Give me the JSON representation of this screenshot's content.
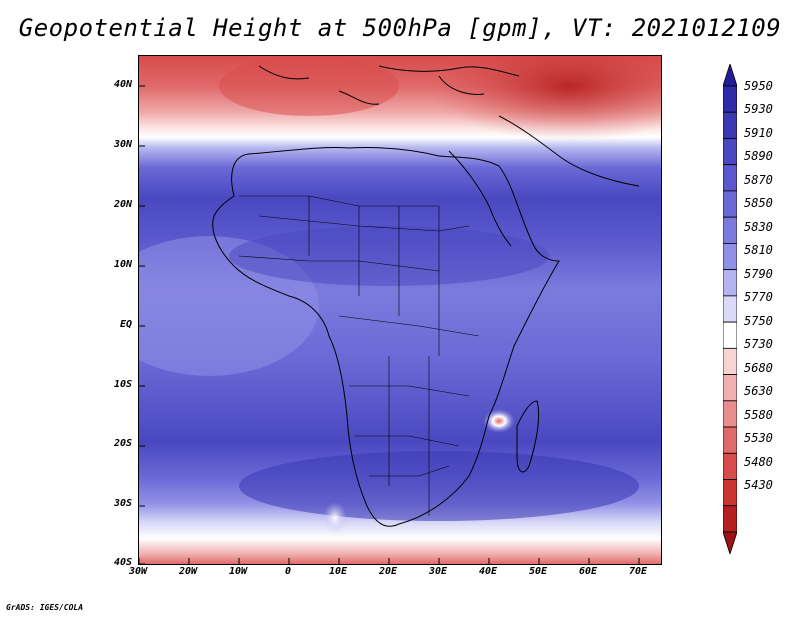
{
  "title": "Geopotential Height at 500hPa [gpm], VT: 2021012109",
  "credit": "GrADS: IGES/COLA",
  "lat_labels": [
    "40N",
    "30N",
    "20N",
    "10N",
    "EQ",
    "10S",
    "20S",
    "30S",
    "40S"
  ],
  "lon_labels": [
    "30W",
    "20W",
    "10W",
    "0",
    "10E",
    "20E",
    "30E",
    "40E",
    "50E",
    "60E",
    "70E"
  ],
  "colorbar": {
    "levels": [
      "5950",
      "5930",
      "5910",
      "5890",
      "5870",
      "5850",
      "5830",
      "5810",
      "5790",
      "5770",
      "5750",
      "5730",
      "5680",
      "5630",
      "5580",
      "5530",
      "5480",
      "5430"
    ],
    "colors": [
      "#241b9c",
      "#2f2aa8",
      "#3b38b4",
      "#4a48c0",
      "#5a58cc",
      "#6a69d6",
      "#7b7bde",
      "#9090e6",
      "#b3b3f0",
      "#dadaf8",
      "#ffffff",
      "#f7d4d4",
      "#f0b0b0",
      "#e88c8c",
      "#e06a6a",
      "#d84b4b",
      "#cc3333",
      "#b51f1f",
      "#9a1414"
    ]
  }
}
